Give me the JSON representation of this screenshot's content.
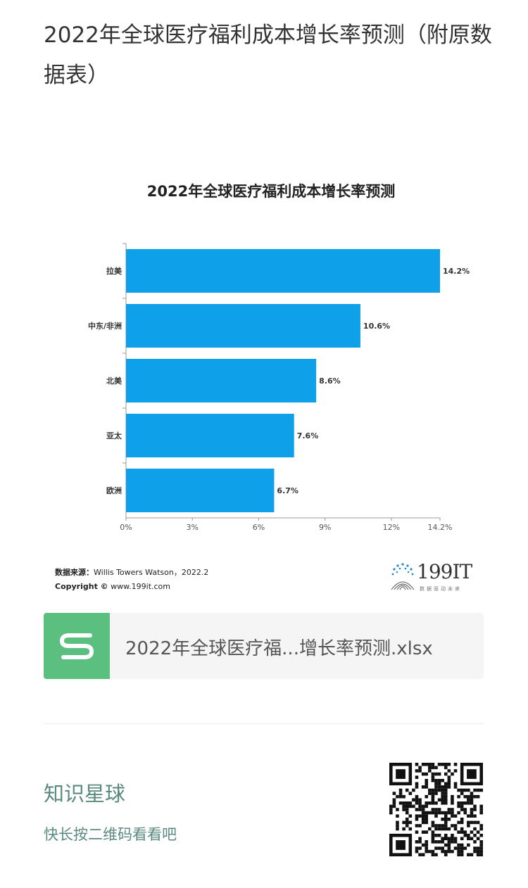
{
  "article": {
    "title": "2022年全球医疗福利成本增长率预测（附原数据表）"
  },
  "chart_data": {
    "type": "bar",
    "orientation": "horizontal",
    "title": "2022年全球医疗福利成本增长率预测",
    "categories": [
      "拉美",
      "中东/非洲",
      "北美",
      "亚太",
      "欧洲"
    ],
    "values": [
      14.2,
      10.6,
      8.6,
      7.6,
      6.7
    ],
    "data_labels": [
      "14.2%",
      "10.6%",
      "8.6%",
      "7.6%",
      "6.7%"
    ],
    "x_ticks": [
      0,
      3,
      6,
      9,
      12,
      14.2
    ],
    "x_tick_labels": [
      "0%",
      "3%",
      "6%",
      "9%",
      "12%",
      "14.2%"
    ],
    "xlim": [
      0,
      14.2
    ],
    "bar_color": "#0ea0e9",
    "grid": false,
    "legend": "none"
  },
  "chart_footer": {
    "source_label": "数据来源：",
    "source_value": "Willis Towers Watson，2022.2",
    "copyright_label": "Copyright ©",
    "copyright_value": "www.199it.com",
    "logo_text": "199IT",
    "logo_tagline": "数据驱动未来"
  },
  "attachment": {
    "file_name": "2022年全球医疗福...增长率预测.xlsx",
    "icon": "spreadsheet-s-icon",
    "icon_color": "#5bbf7f"
  },
  "promo": {
    "title": "知识星球",
    "subtitle": "快长按二维码看看吧",
    "qr_icon": "qr-code-icon",
    "text_color": "#5a8a7e"
  }
}
